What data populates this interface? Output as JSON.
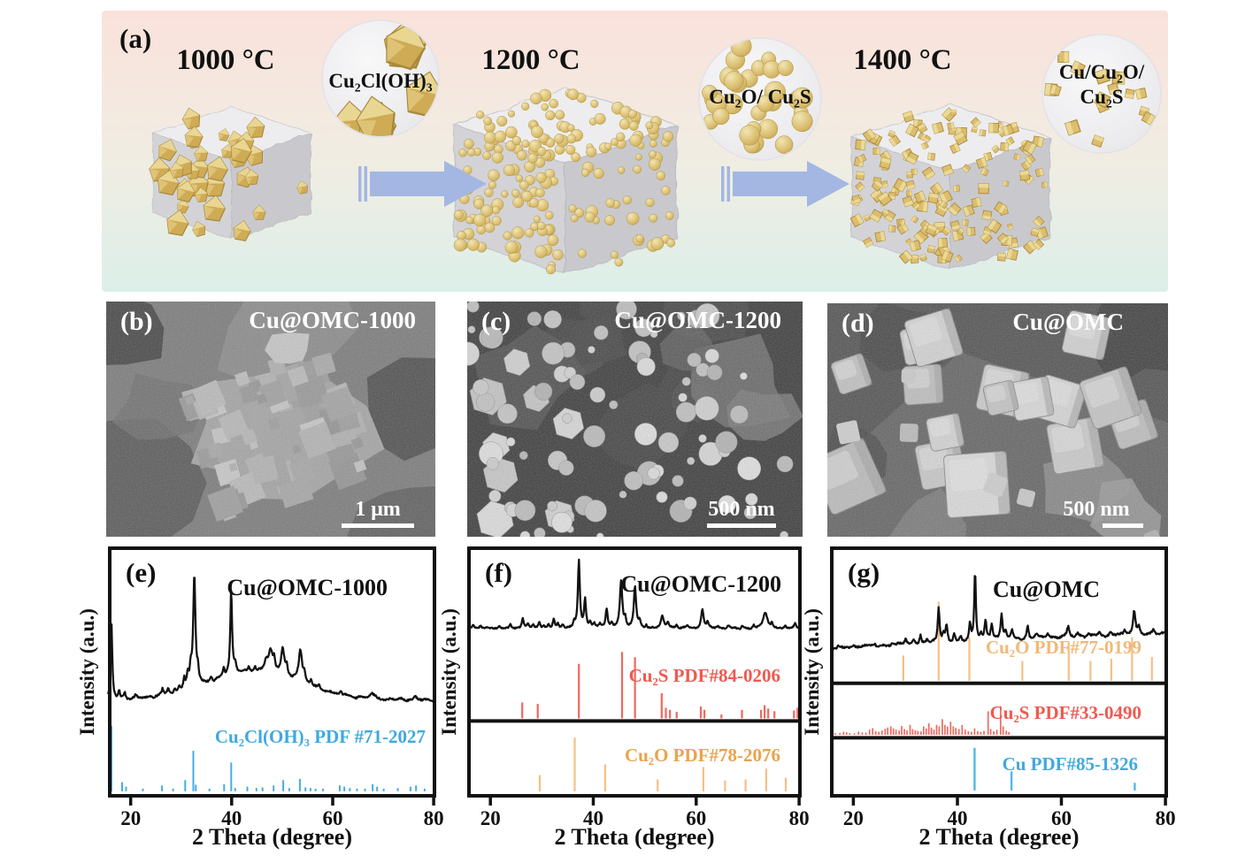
{
  "panel_a": {
    "label": "(a)",
    "background": {
      "top": "#FAE2DB",
      "middle": "#F0EDE3",
      "bottom": "#DCEFE9"
    },
    "arrow_color": "#A3B7E2",
    "gold_color": "#D8B964",
    "carbon_cube_color": "#DBDBDE",
    "stages": [
      {
        "temp": "1000 °C",
        "inset_label": "Cu₂Cl(OH)₃",
        "inset_label_line2": "",
        "particles": "octahedra"
      },
      {
        "temp": "1200 °C",
        "inset_label": "Cu₂O/ Cu₂S",
        "inset_label_line2": "",
        "particles": "spheres"
      },
      {
        "temp": "1400 °C",
        "inset_label": "Cu/Cu₂O/",
        "inset_label_line2": "Cu₂S",
        "particles": "nanocubes"
      }
    ]
  },
  "sem_panels": [
    {
      "label": "(b)",
      "title": "Cu@OMC-1000",
      "scale_bar": "1 μm"
    },
    {
      "label": "(c)",
      "title": "Cu@OMC-1200",
      "scale_bar": "500 nm"
    },
    {
      "label": "(d)",
      "title": "Cu@OMC",
      "scale_bar": "500 nm"
    }
  ],
  "chart_data": [
    {
      "id": "e",
      "type": "line",
      "panel_label": "(e)",
      "title": "Cu@OMC-1000",
      "xlabel": "2 Theta (degree)",
      "ylabel": "Intensity (a.u.)",
      "xlim": [
        15.5,
        80.5
      ],
      "xticks": [
        20,
        40,
        60,
        80
      ],
      "seed": 5,
      "layout": {
        "dividers": []
      },
      "main_pattern": {
        "color": "#121212",
        "base": 0.62,
        "amp": 0.5,
        "baseline": 0.02,
        "slope": 0.0,
        "noise": 0.013,
        "humps": [
          {
            "c": 44.5,
            "w": 13,
            "h": 0.22
          }
        ],
        "peaks": [
          [
            16.2,
            0.6,
            0.18
          ],
          [
            17.7,
            0.07
          ],
          [
            18.8,
            0.05
          ],
          [
            21.0,
            0.03
          ],
          [
            26.3,
            0.05
          ],
          [
            27.4,
            0.04
          ],
          [
            28.7,
            0.04
          ],
          [
            29.6,
            0.04
          ],
          [
            30.6,
            0.09
          ],
          [
            31.3,
            0.1
          ],
          [
            31.9,
            0.14
          ],
          [
            32.6,
            0.9,
            0.26
          ],
          [
            33.3,
            0.1
          ],
          [
            35.9,
            0.04
          ],
          [
            38.4,
            0.07
          ],
          [
            39.9,
            0.67,
            0.22
          ],
          [
            40.7,
            0.08
          ],
          [
            43.4,
            0.04
          ],
          [
            44.6,
            0.04
          ],
          [
            46.8,
            0.08,
            0.4
          ],
          [
            47.7,
            0.17,
            0.5
          ],
          [
            48.4,
            0.08
          ],
          [
            50.1,
            0.22,
            0.4
          ],
          [
            50.9,
            0.08
          ],
          [
            53.6,
            0.25,
            0.4
          ],
          [
            54.4,
            0.06
          ],
          [
            55.7,
            0.04
          ],
          [
            57.3,
            0.03
          ],
          [
            61.6,
            0.03
          ],
          [
            67.8,
            0.04,
            0.5
          ],
          [
            76.3,
            0.03
          ]
        ]
      },
      "references": [
        {
          "name": "Cu₂Cl(OH)₃ PDF #71-2027",
          "color": "#45AEE3",
          "base": 0.975,
          "amp": 0.26,
          "stick_width": 2,
          "sticks": [
            [
              16.2,
              1.0
            ],
            [
              18.3,
              0.14
            ],
            [
              19.1,
              0.07
            ],
            [
              22.4,
              0.04
            ],
            [
              26.2,
              0.09
            ],
            [
              28.4,
              0.04
            ],
            [
              30.8,
              0.17
            ],
            [
              32.4,
              0.62
            ],
            [
              32.9,
              0.1
            ],
            [
              35.6,
              0.04
            ],
            [
              38.5,
              0.11
            ],
            [
              39.9,
              0.44
            ],
            [
              40.7,
              0.05
            ],
            [
              43.1,
              0.07
            ],
            [
              44.9,
              0.05
            ],
            [
              46.1,
              0.06
            ],
            [
              48.3,
              0.09
            ],
            [
              50.2,
              0.17
            ],
            [
              51.4,
              0.05
            ],
            [
              53.5,
              0.19
            ],
            [
              54.6,
              0.06
            ],
            [
              55.6,
              0.05
            ],
            [
              56.6,
              0.04
            ],
            [
              58.1,
              0.04
            ],
            [
              61.4,
              0.09
            ],
            [
              62.3,
              0.07
            ],
            [
              63.4,
              0.05
            ],
            [
              64.8,
              0.04
            ],
            [
              66.4,
              0.04
            ],
            [
              67.9,
              0.11
            ],
            [
              68.8,
              0.07
            ],
            [
              70.1,
              0.04
            ],
            [
              72.9,
              0.05
            ],
            [
              75.4,
              0.07
            ],
            [
              76.5,
              0.09
            ],
            [
              78.2,
              0.04
            ]
          ]
        }
      ]
    },
    {
      "id": "f",
      "type": "line",
      "panel_label": "(f)",
      "title": "Cu@OMC-1200",
      "xlabel": "2 Theta (degree)",
      "ylabel": "Intensity (a.u.)",
      "xlim": [
        15.5,
        80.5
      ],
      "xticks": [
        20,
        40,
        60,
        80
      ],
      "seed": 11,
      "layout": {
        "dividers": [
          0.695
        ]
      },
      "main_pattern": {
        "color": "#121212",
        "base": 0.335,
        "amp": 0.27,
        "baseline": 0.03,
        "slope": 0.0,
        "noise": 0.018,
        "humps": [],
        "peaks": [
          [
            16.6,
            0.05
          ],
          [
            18.1,
            0.04
          ],
          [
            21.7,
            0.05
          ],
          [
            23.9,
            0.06
          ],
          [
            26.3,
            0.14
          ],
          [
            27.3,
            0.07
          ],
          [
            28.3,
            0.05
          ],
          [
            29.5,
            0.08
          ],
          [
            30.4,
            0.05
          ],
          [
            31.3,
            0.06
          ],
          [
            32.3,
            0.14
          ],
          [
            33.1,
            0.07
          ],
          [
            34.1,
            0.05
          ],
          [
            36.3,
            0.1
          ],
          [
            37.2,
            1.0,
            0.22
          ],
          [
            38.4,
            0.42
          ],
          [
            39.4,
            0.08
          ],
          [
            40.2,
            0.06
          ],
          [
            41.3,
            0.05
          ],
          [
            42.6,
            0.28
          ],
          [
            43.6,
            0.08
          ],
          [
            45.4,
            0.7,
            0.28
          ],
          [
            46.2,
            0.14
          ],
          [
            48.1,
            0.6,
            0.26
          ],
          [
            49.0,
            0.1
          ],
          [
            50.3,
            0.05
          ],
          [
            53.4,
            0.18,
            0.35
          ],
          [
            54.5,
            0.08
          ],
          [
            56.2,
            0.05
          ],
          [
            58.3,
            0.04
          ],
          [
            61.2,
            0.3,
            0.3
          ],
          [
            62.2,
            0.08
          ],
          [
            64.2,
            0.04
          ],
          [
            66.3,
            0.05
          ],
          [
            69.0,
            0.04
          ],
          [
            71.2,
            0.05
          ],
          [
            73.4,
            0.22,
            0.5
          ],
          [
            74.7,
            0.07
          ],
          [
            77.3,
            0.06
          ],
          [
            79.2,
            0.08
          ]
        ]
      },
      "references": [
        {
          "name": "Cu₂S PDF#84-0206",
          "color": "#F0685E",
          "base": 0.685,
          "amp": 0.265,
          "stick_width": 2.2,
          "sticks": [
            [
              26.2,
              0.24
            ],
            [
              29.2,
              0.22
            ],
            [
              37.2,
              0.82
            ],
            [
              45.6,
              1.0
            ],
            [
              48.1,
              0.92
            ],
            [
              53.3,
              0.38
            ],
            [
              54.1,
              0.16
            ],
            [
              54.9,
              0.13
            ],
            [
              56.2,
              0.1
            ],
            [
              60.9,
              0.18
            ],
            [
              61.6,
              0.13
            ],
            [
              64.9,
              0.06
            ],
            [
              68.9,
              0.13
            ],
            [
              72.6,
              0.13
            ],
            [
              73.3,
              0.2
            ],
            [
              74.0,
              0.15
            ],
            [
              75.2,
              0.11
            ],
            [
              79.0,
              0.12
            ],
            [
              79.7,
              0.16
            ]
          ]
        },
        {
          "name": "Cu₂O PDF#78-2076",
          "color": "#F6BF85",
          "base": 0.975,
          "amp": 0.215,
          "stick_width": 2.2,
          "sticks": [
            [
              29.6,
              0.3
            ],
            [
              36.4,
              1.0
            ],
            [
              42.3,
              0.5
            ],
            [
              52.5,
              0.22
            ],
            [
              61.4,
              0.45
            ],
            [
              65.6,
              0.2
            ],
            [
              69.6,
              0.22
            ],
            [
              73.6,
              0.42
            ],
            [
              77.4,
              0.25
            ]
          ]
        }
      ]
    },
    {
      "id": "g",
      "type": "line",
      "panel_label": "(g)",
      "title": "Cu@OMC",
      "xlabel": "2 Theta (degree)",
      "ylabel": "Intensity (a.u.)",
      "xlim": [
        15.5,
        80.5
      ],
      "xticks": [
        20,
        40,
        60,
        80
      ],
      "seed": 23,
      "layout": {
        "dividers": [
          0.545,
          0.762
        ]
      },
      "main_pattern": {
        "color": "#121212",
        "base": 0.41,
        "amp": 0.3,
        "baseline": 0.02,
        "slope": 0.2,
        "noise": 0.022,
        "humps": [],
        "peaks": [
          [
            17.1,
            0.03
          ],
          [
            20.1,
            0.03
          ],
          [
            24.1,
            0.03
          ],
          [
            27.5,
            0.04
          ],
          [
            30.1,
            0.07
          ],
          [
            31.6,
            0.05
          ],
          [
            32.9,
            0.12
          ],
          [
            34.2,
            0.05
          ],
          [
            36.4,
            0.48,
            0.2
          ],
          [
            37.3,
            0.1
          ],
          [
            37.9,
            0.22
          ],
          [
            39.4,
            0.12
          ],
          [
            40.6,
            0.06
          ],
          [
            42.4,
            0.22
          ],
          [
            43.4,
            0.95,
            0.18
          ],
          [
            44.5,
            0.08
          ],
          [
            45.4,
            0.25
          ],
          [
            46.6,
            0.2
          ],
          [
            48.5,
            0.32
          ],
          [
            49.3,
            0.1
          ],
          [
            50.5,
            0.12
          ],
          [
            53.5,
            0.18
          ],
          [
            55.2,
            0.06
          ],
          [
            57.4,
            0.04
          ],
          [
            61.3,
            0.15,
            0.3
          ],
          [
            63.1,
            0.04
          ],
          [
            65.2,
            0.04
          ],
          [
            67.3,
            0.04
          ],
          [
            69.4,
            0.05
          ],
          [
            72.2,
            0.06
          ],
          [
            74.0,
            0.32,
            0.28
          ],
          [
            74.9,
            0.12
          ],
          [
            77.7,
            0.06
          ]
        ]
      },
      "references": [
        {
          "name": "Cu₂O PDF#77-0199",
          "color": "#F6BF85",
          "base": 0.535,
          "amp": 0.315,
          "stick_width": 2.2,
          "sticks": [
            [
              29.6,
              0.32
            ],
            [
              36.4,
              1.0
            ],
            [
              42.3,
              0.55
            ],
            [
              52.5,
              0.25
            ],
            [
              61.4,
              0.48
            ],
            [
              65.6,
              0.25
            ],
            [
              69.6,
              0.28
            ],
            [
              73.6,
              0.55
            ],
            [
              77.4,
              0.3
            ]
          ]
        },
        {
          "name": "Cu₂S PDF#33-0490",
          "color": "#ED6A60",
          "base": 0.75,
          "amp": 0.12,
          "stick_width": 1.7,
          "sticks": [
            [
              15.8,
              0.07
            ],
            [
              16.5,
              0.05
            ],
            [
              17.4,
              0.06
            ],
            [
              18.1,
              0.1
            ],
            [
              18.7,
              0.08
            ],
            [
              19.3,
              0.06
            ],
            [
              20.2,
              0.05
            ],
            [
              21.0,
              0.11
            ],
            [
              21.7,
              0.08
            ],
            [
              22.4,
              0.07
            ],
            [
              23.1,
              0.17
            ],
            [
              23.7,
              0.22
            ],
            [
              24.3,
              0.12
            ],
            [
              24.9,
              0.1
            ],
            [
              25.5,
              0.14
            ],
            [
              26.1,
              0.2
            ],
            [
              26.6,
              0.24
            ],
            [
              27.2,
              0.28
            ],
            [
              27.7,
              0.21
            ],
            [
              28.2,
              0.17
            ],
            [
              28.8,
              0.14
            ],
            [
              29.3,
              0.29
            ],
            [
              29.8,
              0.19
            ],
            [
              30.3,
              0.15
            ],
            [
              30.9,
              0.33
            ],
            [
              31.4,
              0.19
            ],
            [
              31.9,
              0.15
            ],
            [
              32.4,
              0.13
            ],
            [
              33.0,
              0.11
            ],
            [
              33.5,
              0.28
            ],
            [
              34.0,
              0.21
            ],
            [
              34.5,
              0.38
            ],
            [
              35.0,
              0.24
            ],
            [
              35.5,
              0.17
            ],
            [
              36.0,
              0.33
            ],
            [
              36.5,
              0.28
            ],
            [
              37.1,
              0.52
            ],
            [
              37.6,
              0.33
            ],
            [
              38.1,
              0.28
            ],
            [
              38.7,
              0.43
            ],
            [
              39.2,
              0.28
            ],
            [
              39.7,
              0.23
            ],
            [
              40.3,
              0.19
            ],
            [
              40.9,
              0.33
            ],
            [
              41.5,
              0.17
            ],
            [
              42.1,
              0.12
            ],
            [
              42.7,
              0.1
            ],
            [
              43.3,
              0.21
            ],
            [
              43.9,
              0.12
            ],
            [
              44.5,
              0.1
            ],
            [
              45.1,
              0.13
            ],
            [
              45.9,
              0.78
            ],
            [
              46.4,
              0.19
            ],
            [
              47.0,
              0.12
            ],
            [
              47.6,
              0.17
            ],
            [
              48.3,
              0.95
            ],
            [
              48.8,
              0.28
            ],
            [
              49.4,
              0.14
            ],
            [
              49.9,
              0.09
            ]
          ]
        },
        {
          "name": "Cu PDF#85-1326",
          "color": "#51B7E8",
          "base": 0.972,
          "amp": 0.17,
          "stick_width": 2.4,
          "sticks": [
            [
              43.3,
              1.0
            ],
            [
              50.4,
              0.45
            ],
            [
              74.1,
              0.18
            ]
          ]
        }
      ]
    }
  ]
}
